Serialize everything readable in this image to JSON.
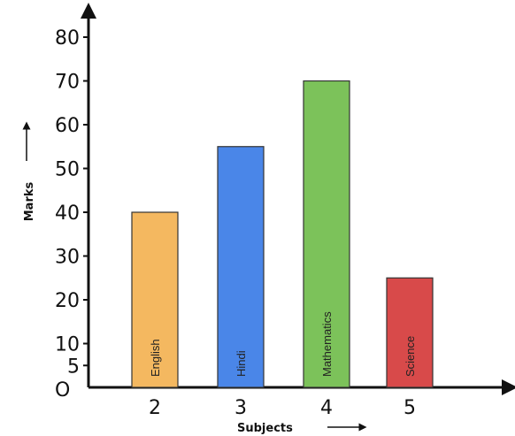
{
  "chart_data": {
    "type": "bar",
    "title": "",
    "xlabel": "Subjects",
    "ylabel": "Marks",
    "origin_label": "O",
    "categories": [
      "2",
      "3",
      "4",
      "5"
    ],
    "bar_labels": [
      "English",
      "Hindi",
      "Mathematics",
      "Science"
    ],
    "values": [
      40,
      55,
      70,
      25
    ],
    "bar_colors": [
      "#f4b860",
      "#4a86e8",
      "#7cc25a",
      "#d84a4a"
    ],
    "yticks": [
      "5",
      "10",
      "20",
      "30",
      "40",
      "50",
      "60",
      "70",
      "80"
    ],
    "ylim": [
      0,
      80
    ],
    "grid": false,
    "legend": "none"
  }
}
